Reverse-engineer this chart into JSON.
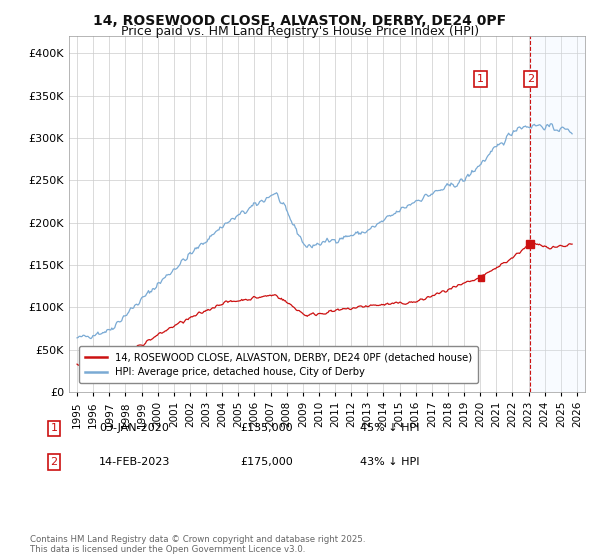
{
  "title": "14, ROSEWOOD CLOSE, ALVASTON, DERBY, DE24 0PF",
  "subtitle": "Price paid vs. HM Land Registry's House Price Index (HPI)",
  "ytick_values": [
    0,
    50000,
    100000,
    150000,
    200000,
    250000,
    300000,
    350000,
    400000
  ],
  "ylim": [
    0,
    420000
  ],
  "xlim_start": 1994.5,
  "xlim_end": 2026.5,
  "hpi_color": "#7aaad4",
  "hpi_shade_color": "#ddeeff",
  "price_color": "#cc1111",
  "annotation_color": "#cc1111",
  "background_color": "#ffffff",
  "grid_color": "#cccccc",
  "legend_label_red": "14, ROSEWOOD CLOSE, ALVASTON, DERBY, DE24 0PF (detached house)",
  "legend_label_blue": "HPI: Average price, detached house, City of Derby",
  "annotation1_date": "03-JAN-2020",
  "annotation1_price": "£135,000",
  "annotation1_pct": "45% ↓ HPI",
  "annotation2_date": "14-FEB-2023",
  "annotation2_price": "£175,000",
  "annotation2_pct": "43% ↓ HPI",
  "footnote": "Contains HM Land Registry data © Crown copyright and database right 2025.\nThis data is licensed under the Open Government Licence v3.0.",
  "title_fontsize": 10,
  "subtitle_fontsize": 9,
  "ann1_x": 2020.02,
  "ann1_y": 135000,
  "ann2_x": 2023.12,
  "ann2_y": 175000
}
